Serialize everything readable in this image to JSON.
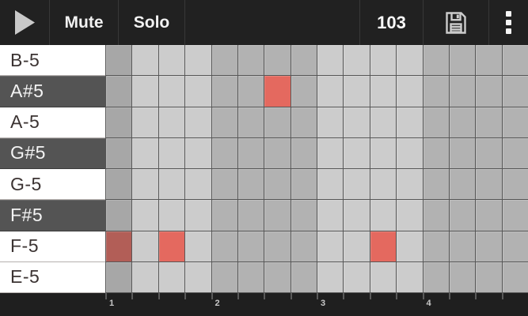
{
  "toolbar": {
    "play_icon": "play-triangle",
    "mute_label": "Mute",
    "solo_label": "Solo",
    "bpm_value": "103",
    "save_icon": "floppy-disk",
    "menu_icon": "overflow-dots"
  },
  "rows": [
    {
      "note": "B-5",
      "type": "natural",
      "active_steps": []
    },
    {
      "note": "A#5",
      "type": "sharp",
      "active_steps": [
        7
      ]
    },
    {
      "note": "A-5",
      "type": "natural",
      "active_steps": []
    },
    {
      "note": "G#5",
      "type": "sharp",
      "active_steps": []
    },
    {
      "note": "G-5",
      "type": "natural",
      "active_steps": []
    },
    {
      "note": "F#5",
      "type": "sharp",
      "active_steps": []
    },
    {
      "note": "F-5",
      "type": "natural",
      "active_steps": [
        1,
        3,
        11
      ]
    },
    {
      "note": "E-5",
      "type": "natural",
      "active_steps": []
    }
  ],
  "grid": {
    "columns": 16,
    "steps_per_beat": 4,
    "playhead_column": 1,
    "label_column_width": 133,
    "beat_labels": [
      "1",
      "2",
      "3",
      "4"
    ]
  },
  "colors": {
    "toolbar_bg": "#212121",
    "bar_bg": "#1f1f1f",
    "divider": "#383838",
    "natural_row_bg": "#ffffff",
    "sharp_row_bg": "#545454",
    "cell_light": "#cccccc",
    "cell_medium": "#b2b2b2",
    "cell_playhead": "#a7a7a7",
    "note_active": "#e4695f",
    "note_active_playhead": "#b25e57",
    "grid_line": "#565656",
    "icon": "#c9c9c9"
  }
}
